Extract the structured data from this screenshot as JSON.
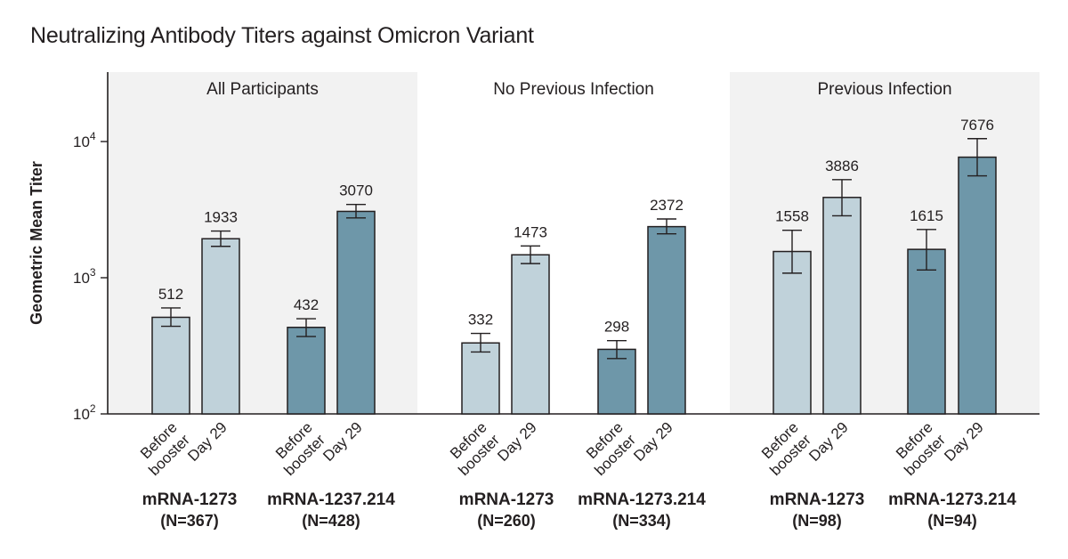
{
  "title": "Neutralizing Antibody Titers against Omicron Variant",
  "chart_data": {
    "type": "bar",
    "title": "Neutralizing Antibody Titers against Omicron Variant",
    "ylabel": "Geometric Mean Titer",
    "xlabel": "",
    "yscale": "log",
    "ylim": [
      100,
      30000
    ],
    "yticks": [
      {
        "value": 100,
        "base": "10",
        "exp": "2"
      },
      {
        "value": 1000,
        "base": "10",
        "exp": "3"
      },
      {
        "value": 10000,
        "base": "10",
        "exp": "4"
      }
    ],
    "timepoint_labels": [
      "Before booster",
      "Day 29"
    ],
    "colors": {
      "mRNA-1273": "#c0d2da",
      "mRNA-1273.214": "#6e97a9",
      "panel_shade": "#f2f2f2",
      "outline": "#231f20"
    },
    "panels": [
      {
        "name": "All Participants",
        "shaded": true,
        "groups": [
          {
            "vaccine": "mRNA-1273",
            "n": "(N=367)",
            "bars": [
              {
                "timepoint": "Before booster",
                "value": 512,
                "label": "512",
                "ci": [
                  440,
                  600
                ]
              },
              {
                "timepoint": "Day 29",
                "value": 1933,
                "label": "1933",
                "ci": [
                  1700,
                  2200
                ]
              }
            ]
          },
          {
            "vaccine": "mRNA-1237.214",
            "n": "(N=428)",
            "bars": [
              {
                "timepoint": "Before booster",
                "value": 432,
                "label": "432",
                "ci": [
                  370,
                  500
                ]
              },
              {
                "timepoint": "Day 29",
                "value": 3070,
                "label": "3070",
                "ci": [
                  2750,
                  3450
                ]
              }
            ]
          }
        ]
      },
      {
        "name": "No Previous Infection",
        "shaded": false,
        "groups": [
          {
            "vaccine": "mRNA-1273",
            "n": "(N=260)",
            "bars": [
              {
                "timepoint": "Before booster",
                "value": 332,
                "label": "332",
                "ci": [
                  285,
                  390
                ]
              },
              {
                "timepoint": "Day 29",
                "value": 1473,
                "label": "1473",
                "ci": [
                  1270,
                  1710
                ]
              }
            ]
          },
          {
            "vaccine": "mRNA-1273.214",
            "n": "(N=334)",
            "bars": [
              {
                "timepoint": "Before booster",
                "value": 298,
                "label": "298",
                "ci": [
                  255,
                  345
                ]
              },
              {
                "timepoint": "Day 29",
                "value": 2372,
                "label": "2372",
                "ci": [
                  2100,
                  2700
                ]
              }
            ]
          }
        ]
      },
      {
        "name": "Previous Infection",
        "shaded": true,
        "groups": [
          {
            "vaccine": "mRNA-1273",
            "n": "(N=98)",
            "bars": [
              {
                "timepoint": "Before booster",
                "value": 1558,
                "label": "1558",
                "ci": [
                  1080,
                  2230
                ]
              },
              {
                "timepoint": "Day 29",
                "value": 3886,
                "label": "3886",
                "ci": [
                  2850,
                  5250
                ]
              }
            ]
          },
          {
            "vaccine": "mRNA-1273.214",
            "n": "(N=94)",
            "bars": [
              {
                "timepoint": "Before booster",
                "value": 1615,
                "label": "1615",
                "ci": [
                  1140,
                  2260
                ]
              },
              {
                "timepoint": "Day 29",
                "value": 7676,
                "label": "7676",
                "ci": [
                  5600,
                  10500
                ]
              }
            ]
          }
        ]
      }
    ]
  }
}
